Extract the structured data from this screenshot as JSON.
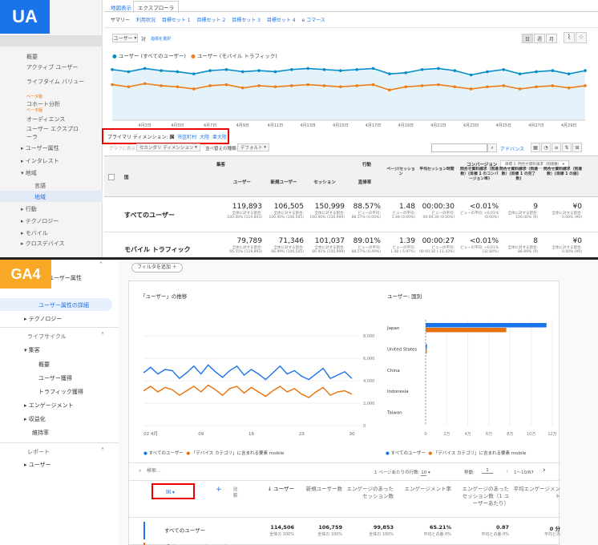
{
  "ua": {
    "badge": "UA",
    "badge_color": "#1a73e8",
    "top_tabs": [
      "地図表示",
      "エクスプローラ"
    ],
    "sub_tabs": [
      "サマリー",
      "利用状況",
      "目標セット 1",
      "目標セット 2",
      "目標セット 3",
      "目標セット 4",
      "e コマース"
    ],
    "metric_select": "ユーザー",
    "metric_compare": "対",
    "metric_pick": "指標を選択",
    "view_buttons": [
      "日",
      "週",
      "月"
    ],
    "legend": [
      "ユーザー (すべてのユーザー)",
      "ユーザー (モバイル トラフィック)"
    ],
    "y_labels": [
      "4,000",
      "2,000"
    ],
    "x_labels": [
      "4月3日",
      "4月5日",
      "4月7日",
      "4月9日",
      "4月11日",
      "4月13日",
      "4月15日",
      "4月17日",
      "4月19日",
      "4月21日",
      "4月23日",
      "4月25日",
      "4月27日",
      "4月29日"
    ],
    "primary_dim_label": "プライマリ ディメンション:",
    "primary_dims": [
      "国",
      "市区町村",
      "大陸",
      "亜大陸"
    ],
    "plot_rows": "グラフに表示",
    "secondary_dim": "セカンダリ ディメンション",
    "sort_type": "並べ替えの種類:",
    "sort_default": "デフォルト",
    "advanced": "アドバンス",
    "nav": {
      "items": [
        "概要",
        "アクティブ ユーザー",
        "ライフタイム バリュー",
        "コホート分析",
        "オーディエンス",
        "ユーザー エクスプローラ",
        "ユーザー属性",
        "インタレスト",
        "地域",
        "言語",
        "地域",
        "行動",
        "テクノロジー",
        "モバイル",
        "クロスデバイス"
      ],
      "beta": "ベータ版"
    },
    "table": {
      "group_acq": "集客",
      "group_beh": "行動",
      "group_conv": "コンバージョン",
      "conv_select": "目標 1: 問合せ資料請求（到達数）",
      "dim_header": "国",
      "headers": [
        "ユーザー",
        "新規ユーザー",
        "セッション",
        "直帰率",
        "ページ/セッション",
        "平均セッション時間",
        "問合せ資料請求（到達数）(目標 1 のコンバージョン率)",
        "問合せ資料請求（到達数）(目標 1 の完了数)",
        "問合せ資料請求（到達数）(目標 1 の値)"
      ],
      "rows": [
        {
          "label": "すべてのユーザー",
          "values": [
            "119,893",
            "106,505",
            "150,999",
            "88.57%",
            "1.48",
            "00:00:30",
            "<0.01%",
            "9",
            "¥0"
          ],
          "subs": [
            "全体に対する割合: 100.00% (119,893)",
            "全体に対する割合: 100.00% (106,505)",
            "全体に対する割合: 100.00% (150,999)",
            "ビューの平均: 88.57% (0.00%)",
            "ビューの平均: 1.48 (0.00%)",
            "ビューの平均: 00:00:30 (0.00%)",
            "ビューの平均: <0.01% (0.00%)",
            "全体に対する割合: 100.00% (9)",
            "全体に対する割合: 0.00% (¥0)"
          ]
        },
        {
          "label": "モバイル トラフィック",
          "values": [
            "79,789",
            "71,346",
            "101,037",
            "89.01%",
            "1.39",
            "00:00:27",
            "<0.01%",
            "8",
            "¥0"
          ],
          "subs": [
            "全体に対する割合: 66.55% (119,893)",
            "全体に対する割合: 66.99% (106,505)",
            "全体に対する割合: 66.91% (150,999)",
            "ビューの平均: 88.57% (0.49%)",
            "ビューの平均: 1.48 (-5.97%)",
            "ビューの平均: 00:00:30 (-11.43%)",
            "ビューの平均: <0.01% (32.84%)",
            "全体に対する割合: 88.89% (9)",
            "全体に対する割合: 0.00% (¥0)"
          ]
        }
      ]
    }
  },
  "ga4": {
    "badge": "GA4",
    "badge_color": "#f9a825",
    "filter_btn": "フィルタを追加",
    "nav": {
      "section_user_attr": "ユーザー属性",
      "user_attr_detail": "ユーザー属性の詳細",
      "technology": "テクノロジー",
      "lifecycle": "ライフサイクル",
      "acquisition": "集客",
      "overview": "概要",
      "user_acq": "ユーザー獲得",
      "traffic_acq": "トラフィック獲得",
      "engagement": "エンゲージメント",
      "monetization": "収益化",
      "retention": "維持率",
      "reports": "レポート",
      "user": "ユーザー"
    },
    "line_title": "「ユーザー」の推移",
    "line_y": [
      "8,000",
      "6,000",
      "4,000",
      "2,000",
      "0"
    ],
    "line_x": [
      "02 4月",
      "09",
      "16",
      "23",
      "30"
    ],
    "legend": [
      "すべてのユーザー",
      "「デバイス カテゴリ」に含まれる要素 mobile"
    ],
    "bar_title": "ユーザー: 国別",
    "bar_countries": [
      "Japan",
      "United States",
      "China",
      "Indonesia",
      "Taiwan"
    ],
    "bar_x": [
      "0",
      "2万",
      "4万",
      "6万",
      "8万",
      "10万",
      "12万"
    ],
    "bar_data": {
      "all": [
        114506,
        1200,
        0,
        0,
        0
      ],
      "mobile": [
        76380,
        300,
        0,
        0,
        0
      ]
    },
    "search_placeholder": "検索...",
    "rows_per_page_label": "1 ページあたりの行数:",
    "rows_per_page": "10",
    "goto_label": "移動:",
    "goto_value": "1",
    "page_range": "1〜10/67",
    "table": {
      "dim": "国",
      "plus": "+",
      "compare": "比較",
      "headers": [
        "↓ ユーザー",
        "新規ユーザー数",
        "エンゲージのあったセッション数",
        "エンゲージメント率",
        "エンゲージのあったセッション数（1 ユーザーあたり）",
        "平均エンゲージメント"
      ],
      "rows": [
        {
          "label": "すべてのユーザー",
          "values": [
            "114,506",
            "106,759",
            "99,853",
            "65.21%",
            "0.87",
            "0 分"
          ],
          "subs": [
            "全体の 100%",
            "全体の 100%",
            "全体の 100%",
            "平均との差 0%",
            "平均との差 0%",
            "平均との"
          ]
        },
        {
          "label": "「デバイス カテゴリ」に含まれる要素 mobile",
          "values": [
            "76,380",
            "72,281",
            "63,920",
            "63.04%",
            "0.84",
            "0 分"
          ],
          "subs": [
            "全体の 66.7%",
            "全体の 67.7%",
            "全体の 64.01%",
            "平均より 3.32% 低い",
            "平均より 4.03% 低い",
            "平均より 25.9"
          ]
        }
      ]
    }
  },
  "chart_data": [
    {
      "type": "line",
      "title": "",
      "x": [
        "4月1日",
        "4月2日",
        "4月3日",
        "4月4日",
        "4月5日",
        "4月6日",
        "4月7日",
        "4月8日",
        "4月9日",
        "4月10日",
        "4月11日",
        "4月12日",
        "4月13日",
        "4月14日",
        "4月15日",
        "4月16日",
        "4月17日",
        "4月18日",
        "4月19日",
        "4月20日",
        "4月21日",
        "4月22日",
        "4月23日",
        "4月24日",
        "4月25日",
        "4月26日",
        "4月27日",
        "4月28日",
        "4月29日",
        "4月30日"
      ],
      "series": [
        {
          "name": "ユーザー (すべてのユーザー)",
          "color": "#058dc7",
          "values": [
            4700,
            4500,
            4800,
            4600,
            4500,
            4300,
            4600,
            4700,
            4500,
            4600,
            4500,
            4700,
            4800,
            4700,
            4600,
            4700,
            4800,
            4300,
            4400,
            4700,
            4800,
            4600,
            4200,
            4500,
            4700,
            4300,
            4500,
            4600,
            4300,
            4600
          ]
        },
        {
          "name": "ユーザー (モバイル トラフィック)",
          "color": "#ed7e17",
          "values": [
            3300,
            3100,
            3400,
            3200,
            3100,
            2900,
            3200,
            3300,
            3000,
            3200,
            3100,
            3200,
            3300,
            3200,
            3100,
            3200,
            3300,
            2800,
            3100,
            3200,
            3300,
            3100,
            2900,
            3100,
            3200,
            2900,
            3100,
            3200,
            3000,
            3200
          ]
        }
      ],
      "ylim": [
        0,
        5500
      ]
    },
    {
      "type": "line",
      "title": "「ユーザー」の推移",
      "x": [
        "4月1日",
        "4月2日",
        "4月3日",
        "4月4日",
        "4月5日",
        "4月6日",
        "4月7日",
        "4月8日",
        "4月9日",
        "4月10日",
        "4月11日",
        "4月12日",
        "4月13日",
        "4月14日",
        "4月15日",
        "4月16日",
        "4月17日",
        "4月18日",
        "4月19日",
        "4月20日",
        "4月21日",
        "4月22日",
        "4月23日",
        "4月24日",
        "4月25日",
        "4月26日",
        "4月27日",
        "4月28日",
        "4月29日",
        "4月30日"
      ],
      "series": [
        {
          "name": "すべてのユーザー",
          "color": "#1a73e8",
          "values": [
            4700,
            5200,
            4600,
            5000,
            4900,
            4200,
            4700,
            5300,
            4600,
            5400,
            4800,
            4300,
            4900,
            5300,
            4500,
            5000,
            4600,
            4100,
            4700,
            5300,
            4600,
            4900,
            4400,
            4100,
            4600,
            5100,
            4200,
            4500,
            4800,
            4200
          ]
        },
        {
          "name": "「デバイス カテゴリ」に含まれる要素 mobile",
          "color": "#e8710a",
          "values": [
            3100,
            3500,
            3000,
            3400,
            3200,
            2700,
            3100,
            3500,
            3000,
            3600,
            3200,
            2700,
            3300,
            3500,
            2900,
            3400,
            3000,
            2600,
            3100,
            3500,
            3000,
            3300,
            2800,
            2500,
            3000,
            3400,
            2700,
            3000,
            3100,
            2800
          ]
        }
      ],
      "ylim": [
        0,
        9000
      ]
    },
    {
      "type": "bar",
      "title": "ユーザー: 国別",
      "categories": [
        "Japan",
        "United States",
        "China",
        "Indonesia",
        "Taiwan"
      ],
      "series": [
        {
          "name": "すべてのユーザー",
          "color": "#1a73e8",
          "values": [
            114506,
            1200,
            0,
            0,
            0
          ]
        },
        {
          "name": "「デバイス カテゴリ」に含まれる要素 mobile",
          "color": "#e8710a",
          "values": [
            76380,
            300,
            0,
            0,
            0
          ]
        }
      ],
      "xlim": [
        0,
        120000
      ]
    }
  ]
}
